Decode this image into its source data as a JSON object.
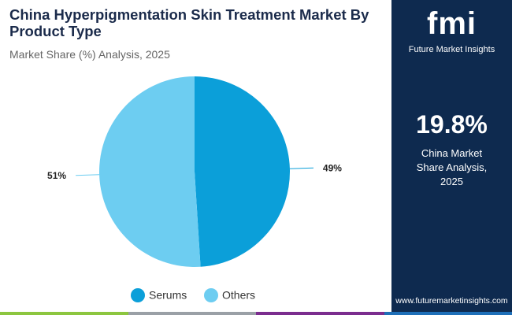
{
  "chart_data": {
    "type": "pie",
    "title": "China Hyperpigmentation Skin Treatment Market By Product Type",
    "subtitle": "Market Share (%) Analysis, 2025",
    "categories": [
      "Serums",
      "Others"
    ],
    "values": [
      49,
      51
    ],
    "value_labels": [
      "49%",
      "51%"
    ],
    "colors": [
      "#0b9fd9",
      "#6dcdf1"
    ]
  },
  "sidebar": {
    "logo": "fmi",
    "brand": "Future Market Insights",
    "stat": "19.8%",
    "stat_label": "China Market Share Analysis, 2025",
    "url": "www.futuremarketinsights.com"
  }
}
